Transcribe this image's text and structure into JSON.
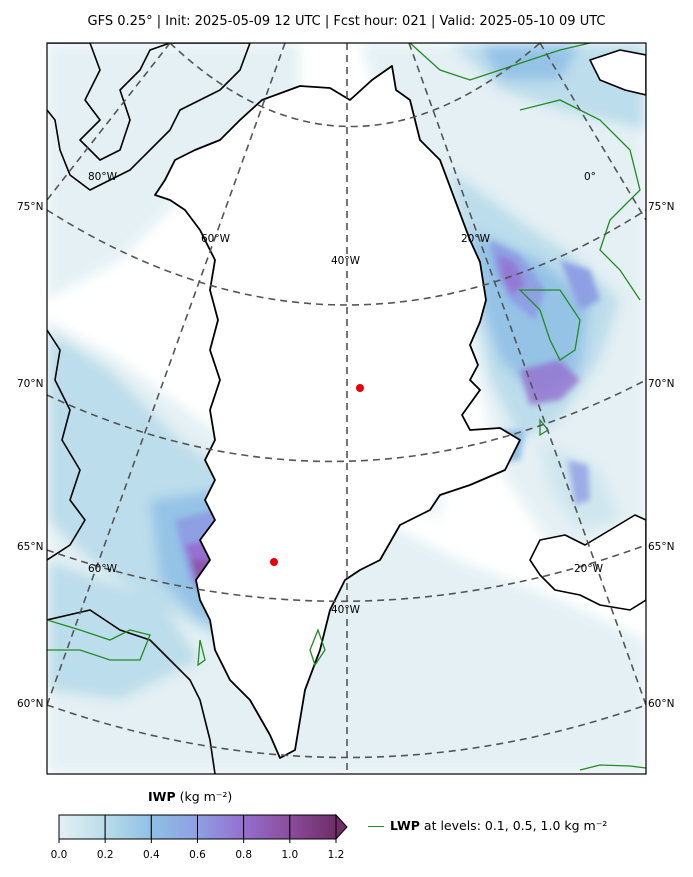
{
  "header": {
    "title": "GFS 0.25$^\\circ$  |  Init: 2025-05-09 12 UTC  |  Fcst hour: 021  |  Valid: 2025-05-10 09 UTC",
    "title_text": "GFS 0.25°  |  Init: 2025-05-09 12 UTC  |  Fcst hour: 021  |  Valid: 2025-05-10 09 UTC"
  },
  "map": {
    "projection": "polar stereographic",
    "lat_labels_left": [
      "75°N",
      "70°N",
      "65°N",
      "60°N"
    ],
    "lat_labels_right": [
      "75°N",
      "70°N",
      "65°N",
      "60°N"
    ],
    "lon_labels": [
      "80°W",
      "60°W",
      "40°W",
      "20°W",
      "0°",
      "60°W",
      "40°W",
      "20°W"
    ],
    "markers": [
      {
        "name": "station-1",
        "color": "#e8000b"
      },
      {
        "name": "station-2",
        "color": "#e8000b"
      }
    ],
    "coastline_color": "#000000",
    "lwp_contour_color": "#228b22",
    "gridline_color": "#555555"
  },
  "colorbar": {
    "title_bold": "IWP",
    "title_units": " (kg m⁻²)",
    "ticks": [
      "0.0",
      "0.2",
      "0.4",
      "0.6",
      "0.8",
      "1.0",
      "1.2"
    ],
    "colors": [
      "#e3f0f4",
      "#b9dcea",
      "#8fc0e5",
      "#8e9fe3",
      "#956fcf",
      "#8b4c9c",
      "#6e2e66"
    ],
    "extend": "max"
  },
  "legend": {
    "label_bold": "LWP",
    "label_rest": " at levels: 0.1, 0.5, 1.0  kg m⁻²"
  }
}
